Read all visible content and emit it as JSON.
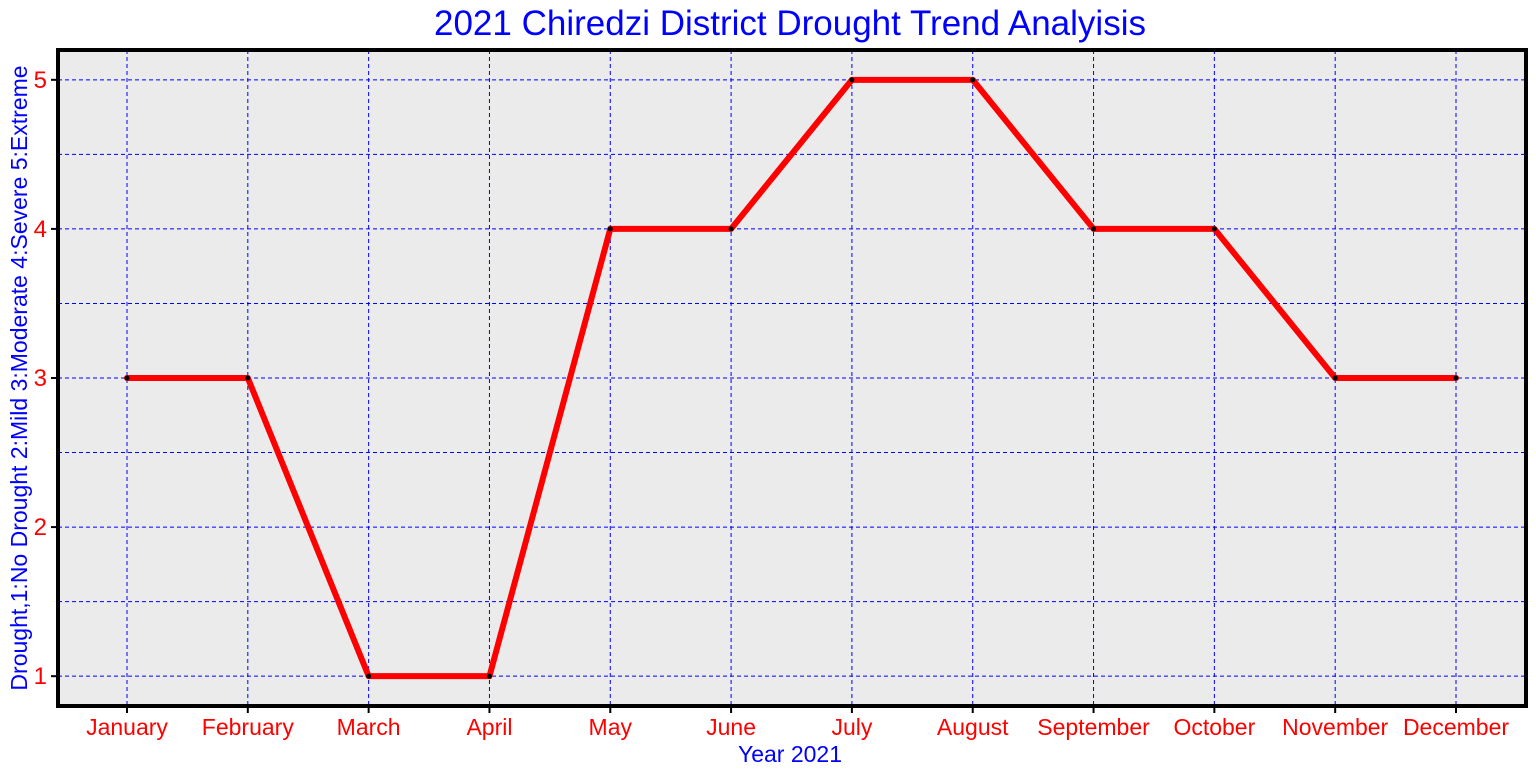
{
  "chart_data": {
    "type": "line",
    "title": "2021 Chiredzi District Drought Trend Analyisis",
    "xlabel": "Year 2021",
    "ylabel": "Drought,1:No Drought 2:Mild 3:Moderate 4:Severe 5:Extreme",
    "categories": [
      "January",
      "February",
      "March",
      "April",
      "May",
      "June",
      "July",
      "August",
      "September",
      "October",
      "November",
      "December"
    ],
    "series": [
      {
        "values": [
          3,
          3,
          1,
          1,
          4,
          4,
          5,
          5,
          4,
          4,
          3,
          3
        ]
      }
    ],
    "ylim": [
      0.8,
      5.2
    ],
    "yticks": [
      1,
      2,
      3,
      4,
      5
    ],
    "y_minor_gridlines": [
      1.5,
      2.5,
      3.5,
      4.5
    ],
    "grid": true,
    "legend": "none"
  },
  "colors": {
    "title": "#0000ff",
    "axis_label": "#0000ff",
    "tick_label": "#ff0000",
    "series_line": "#ff0000",
    "grid": "#0000ff",
    "plot_background": "#ebebeb",
    "frame": "#000000"
  }
}
